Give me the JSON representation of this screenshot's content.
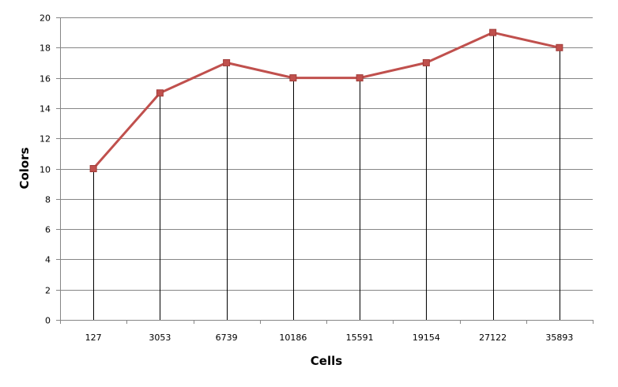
{
  "chart_data": {
    "type": "line",
    "title": "",
    "xlabel": "Cells",
    "ylabel": "Colors",
    "categories": [
      "127",
      "3053",
      "6739",
      "10186",
      "15591",
      "19154",
      "27122",
      "35893"
    ],
    "series": [
      {
        "values": [
          10,
          15,
          17,
          16,
          16,
          17,
          19,
          18
        ]
      }
    ],
    "ylim": [
      0,
      20
    ],
    "yticks": [
      0,
      2,
      4,
      6,
      8,
      10,
      12,
      14,
      16,
      18,
      20
    ],
    "grid": "horizontal",
    "drop_lines": true,
    "legend": "none",
    "colors": {
      "series": "#c0504d",
      "marker": "#c0504d",
      "grid": "#868686",
      "axis": "#868686",
      "drop_line": "#000000"
    }
  }
}
